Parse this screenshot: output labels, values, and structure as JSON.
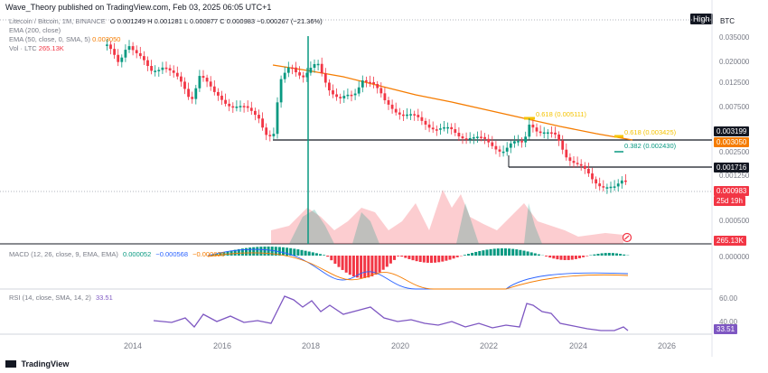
{
  "header": {
    "publisher_text": "Wave_Theory published on TradingView.com, Feb 03, 2025 06:05 UTC+1"
  },
  "legend": {
    "symbol_line": "Litecoin / Bitcoin, 1M, BINANCE",
    "ohlc": "O 0.001249  H 0.001281  L 0.000877  C 0.000983  −0.000267 (−21.36%)",
    "ema200": "EMA (200, close)",
    "ema50_label": "EMA (50, close, 0, SMA, 5)",
    "ema50_value": "0.003050",
    "vol_label": "Vol · LTC",
    "vol_value": "265.13K"
  },
  "top_right": {
    "high_label": "High",
    "currency": "BTC"
  },
  "price_axis": {
    "labels": [
      "0.035000",
      "0.020000",
      "0.012500",
      "0.007500",
      "0.002500",
      "0.001250",
      "0.000500"
    ],
    "tags": [
      {
        "text": "0.003199",
        "bg": "#131722",
        "fg": "#ffffff"
      },
      {
        "text": "0.003050",
        "bg": "#f57c00",
        "fg": "#ffffff"
      },
      {
        "text": "0.001716",
        "bg": "#131722",
        "fg": "#ffffff"
      },
      {
        "text": "0.000983",
        "bg": "#f23645",
        "fg": "#ffffff"
      },
      {
        "text": "25d 19h",
        "bg": "#f23645",
        "fg": "#ffffff"
      },
      {
        "text": "265.13K",
        "bg": "#f23645",
        "fg": "#ffffff"
      }
    ]
  },
  "fib_labels": {
    "f1": "0.618 (0.005111)",
    "f2": "0.618 (0.003425)",
    "f3": "0.382 (0.002430)"
  },
  "macd": {
    "label": "MACD (12, 26, close, 9, EMA, EMA)",
    "v1": "0.000052",
    "v2": "−0.000568",
    "v3": "−0.000620",
    "axis": "0.000000"
  },
  "rsi": {
    "label": "RSI (14, close, SMA, 14, 2)",
    "value": "33.51",
    "axis": [
      "60.00",
      "40.00"
    ],
    "tag": "33.51"
  },
  "time_axis": [
    "2014",
    "2016",
    "2018",
    "2020",
    "2022",
    "2024",
    "2026"
  ],
  "footer": {
    "brand": "TradingView"
  },
  "colors": {
    "up": "#089981",
    "down": "#f23645",
    "ema": "#f57c00",
    "rsi": "#7e57c2"
  }
}
